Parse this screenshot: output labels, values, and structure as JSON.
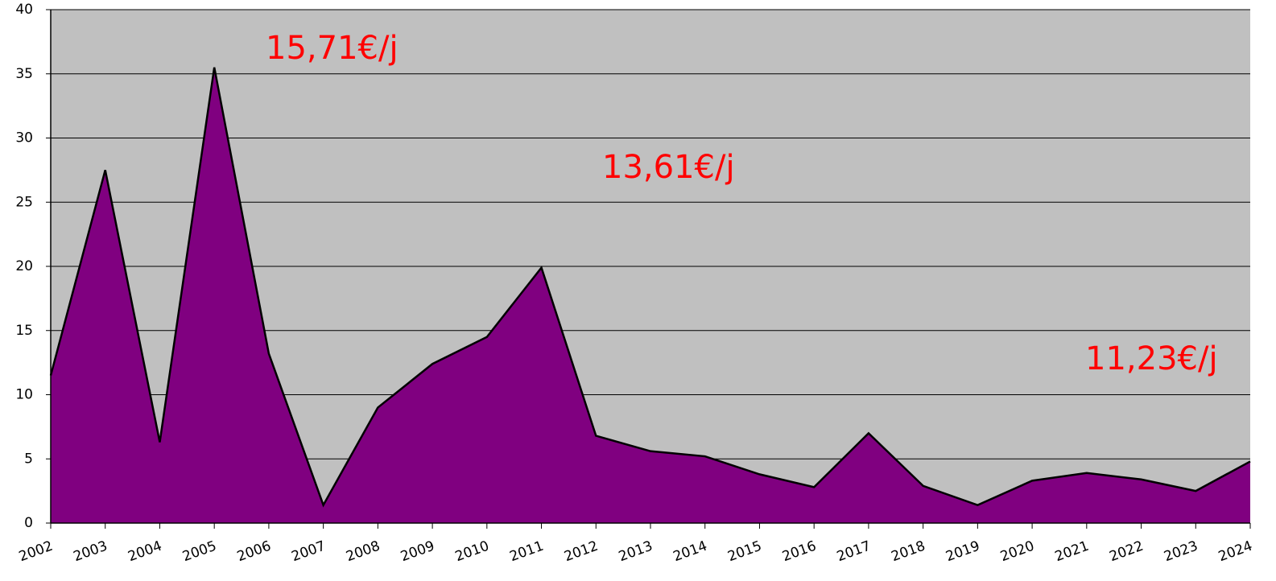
{
  "chart_data": {
    "type": "area",
    "x": [
      2002,
      2003,
      2004,
      2005,
      2006,
      2007,
      2008,
      2009,
      2010,
      2011,
      2012,
      2013,
      2014,
      2015,
      2016,
      2017,
      2018,
      2019,
      2020,
      2021,
      2022,
      2023,
      2024
    ],
    "series": [
      {
        "color": "#800080",
        "values": [
          11.5,
          27.5,
          6.3,
          35.5,
          13.2,
          1.4,
          9.0,
          12.4,
          14.5,
          19.9,
          6.8,
          5.6,
          5.2,
          3.8,
          2.8,
          7.0,
          2.9,
          1.4,
          3.3,
          3.9,
          3.4,
          2.5,
          4.8
        ]
      }
    ],
    "xlim": [
      2002,
      2024
    ],
    "xticks": [
      2002,
      2003,
      2004,
      2005,
      2006,
      2007,
      2008,
      2009,
      2010,
      2011,
      2012,
      2013,
      2014,
      2015,
      2016,
      2017,
      2018,
      2019,
      2020,
      2021,
      2022,
      2023,
      2024
    ],
    "ylim": [
      0,
      40
    ],
    "yticks": [
      0,
      5,
      10,
      15,
      20,
      25,
      30,
      35,
      40
    ],
    "grid": true,
    "annotations": [
      "15,71€/j",
      "13,61€/j",
      "11,23€/j"
    ],
    "annotation_color": "#ff0000"
  }
}
